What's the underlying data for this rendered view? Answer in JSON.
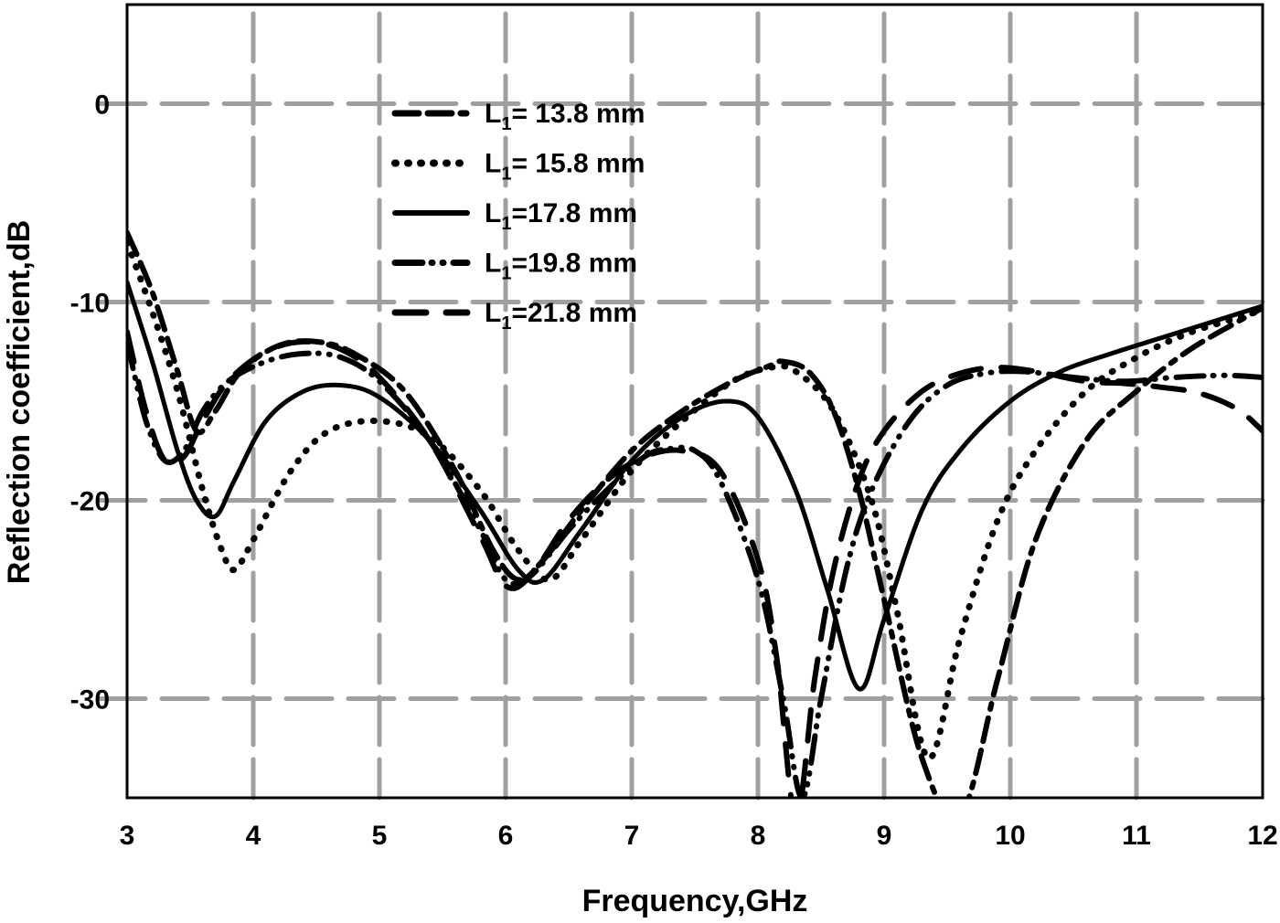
{
  "chart_data": {
    "type": "line",
    "title": "",
    "xlabel": "Frequency,GHz",
    "ylabel": "Reflection coefficient,dB",
    "xlim": [
      3,
      12
    ],
    "ylim": [
      -35,
      5
    ],
    "x_ticks": [
      "3",
      "4",
      "5",
      "6",
      "7",
      "8",
      "9",
      "10",
      "11",
      "12"
    ],
    "y_ticks": [
      "0",
      "-10",
      "-20",
      "-30"
    ],
    "y_tick_values": [
      0,
      -10,
      -20,
      -30
    ],
    "grid": true,
    "legend_position": "upper-center",
    "series": [
      {
        "name": "L1= 13.8 mm",
        "label_main": "L",
        "label_sub": "1",
        "label_rest": "= 13.8 mm",
        "style": "dash-dash-dot",
        "x": [
          3.0,
          3.2,
          3.4,
          3.55,
          3.7,
          3.9,
          4.2,
          4.5,
          4.8,
          5.2,
          5.6,
          5.9,
          6.1,
          6.3,
          6.6,
          7.0,
          7.4,
          7.8,
          8.1,
          8.2,
          8.4,
          8.6,
          8.8,
          9.0,
          9.3,
          9.6,
          9.9,
          10.2,
          10.6,
          11.0,
          11.4,
          11.8,
          12.0
        ],
        "y": [
          -6.5,
          -9.5,
          -13.5,
          -16.5,
          -15.5,
          -13.5,
          -12.2,
          -12.0,
          -12.6,
          -14.5,
          -18.5,
          -22.5,
          -24.0,
          -23.0,
          -20.5,
          -17.5,
          -15.5,
          -14.0,
          -13.2,
          -13.0,
          -13.5,
          -15.5,
          -19.5,
          -25.0,
          -33.0,
          -36.0,
          -29.0,
          -22.0,
          -17.0,
          -14.5,
          -12.5,
          -11.0,
          -10.3
        ]
      },
      {
        "name": "L1= 15.8 mm",
        "label_main": "L",
        "label_sub": "1",
        "label_rest": "= 15.8 mm",
        "style": "dotted",
        "x": [
          3.0,
          3.2,
          3.4,
          3.6,
          3.75,
          3.85,
          4.0,
          4.3,
          4.6,
          5.0,
          5.4,
          5.8,
          6.1,
          6.35,
          6.6,
          7.0,
          7.4,
          7.8,
          8.1,
          8.3,
          8.6,
          8.9,
          9.1,
          9.35,
          9.6,
          9.9,
          10.2,
          10.6,
          11.0,
          11.4,
          11.8,
          12.0
        ],
        "y": [
          -7.0,
          -10.5,
          -14.5,
          -19.5,
          -22.5,
          -23.5,
          -22.0,
          -18.5,
          -16.5,
          -16.0,
          -16.8,
          -19.5,
          -22.5,
          -24.0,
          -22.0,
          -18.5,
          -16.0,
          -14.0,
          -13.3,
          -13.5,
          -15.5,
          -20.0,
          -25.5,
          -33.0,
          -27.0,
          -21.0,
          -17.5,
          -14.5,
          -12.8,
          -11.6,
          -10.8,
          -10.4
        ]
      },
      {
        "name": "L1=17.8 mm",
        "label_main": "L",
        "label_sub": "1",
        "label_rest": "=17.8 mm",
        "style": "solid",
        "x": [
          3.0,
          3.2,
          3.4,
          3.55,
          3.7,
          3.85,
          4.1,
          4.4,
          4.7,
          5.0,
          5.4,
          5.8,
          6.1,
          6.3,
          6.6,
          7.0,
          7.4,
          7.75,
          8.0,
          8.3,
          8.55,
          8.8,
          9.0,
          9.3,
          9.6,
          10.0,
          10.4,
          10.8,
          11.2,
          11.6,
          12.0
        ],
        "y": [
          -9.0,
          -13.0,
          -17.5,
          -20.0,
          -20.8,
          -19.0,
          -16.0,
          -14.5,
          -14.2,
          -14.8,
          -17.0,
          -20.5,
          -23.5,
          -24.0,
          -21.5,
          -18.0,
          -15.8,
          -15.0,
          -15.8,
          -19.5,
          -24.5,
          -29.5,
          -26.0,
          -20.5,
          -17.5,
          -15.0,
          -13.5,
          -12.6,
          -11.8,
          -11.0,
          -10.2
        ]
      },
      {
        "name": "L1=19.8 mm",
        "label_main": "L",
        "label_sub": "1",
        "label_rest": "=19.8 mm",
        "style": "dash-dot-dot",
        "x": [
          3.0,
          3.15,
          3.3,
          3.45,
          3.6,
          3.8,
          4.1,
          4.4,
          4.7,
          5.0,
          5.4,
          5.8,
          6.0,
          6.2,
          6.5,
          6.8,
          7.1,
          7.3,
          7.5,
          7.7,
          8.0,
          8.2,
          8.35,
          8.5,
          8.7,
          8.9,
          9.2,
          9.5,
          9.8,
          10.1,
          10.5,
          10.9,
          11.3,
          11.7,
          12.0
        ],
        "y": [
          -12.0,
          -16.0,
          -18.0,
          -17.5,
          -15.5,
          -14.0,
          -13.0,
          -12.6,
          -12.8,
          -14.0,
          -17.0,
          -21.5,
          -24.0,
          -23.8,
          -21.5,
          -19.5,
          -17.8,
          -17.4,
          -17.5,
          -19.0,
          -24.0,
          -30.0,
          -35.0,
          -30.0,
          -23.5,
          -19.5,
          -16.0,
          -14.2,
          -13.6,
          -13.5,
          -13.8,
          -14.0,
          -13.8,
          -13.7,
          -13.8
        ]
      },
      {
        "name": "L1=21.8 mm",
        "label_main": "L",
        "label_sub": "1",
        "label_rest": "=21.8 mm",
        "style": "long-dash",
        "x": [
          3.0,
          3.15,
          3.3,
          3.45,
          3.6,
          3.8,
          4.1,
          4.4,
          4.7,
          5.0,
          5.4,
          5.8,
          6.0,
          6.2,
          6.5,
          6.8,
          7.1,
          7.4,
          7.7,
          8.0,
          8.15,
          8.3,
          8.45,
          8.6,
          8.8,
          9.0,
          9.3,
          9.6,
          9.9,
          10.2,
          10.6,
          10.9,
          11.2,
          11.5,
          11.8,
          12.0
        ],
        "y": [
          -11.5,
          -15.5,
          -18.0,
          -17.8,
          -16.0,
          -14.0,
          -12.5,
          -12.0,
          -12.4,
          -13.8,
          -17.0,
          -21.8,
          -24.3,
          -23.8,
          -21.0,
          -19.0,
          -17.8,
          -17.5,
          -18.5,
          -23.0,
          -28.0,
          -36.0,
          -29.0,
          -23.5,
          -19.0,
          -16.5,
          -14.5,
          -13.6,
          -13.3,
          -13.5,
          -14.0,
          -14.1,
          -14.3,
          -14.6,
          -15.4,
          -16.5
        ]
      }
    ]
  },
  "axes": {
    "xlabel": "Frequency,GHz",
    "ylabel": "Reflection coefficient,dB"
  }
}
